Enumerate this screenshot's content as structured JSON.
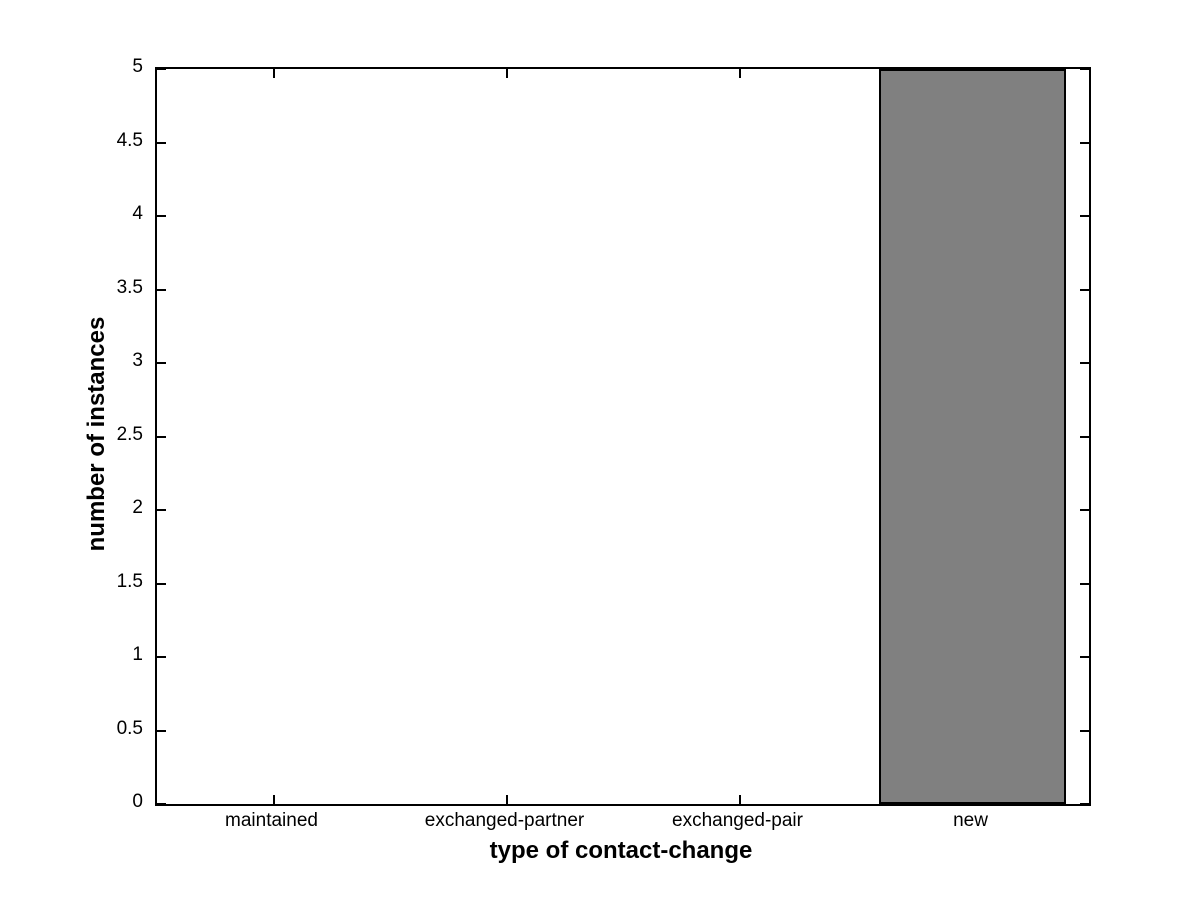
{
  "chart_data": {
    "type": "bar",
    "title": "",
    "xlabel": "type of contact-change",
    "ylabel": "number of instances",
    "categories": [
      "maintained",
      "exchanged-partner",
      "exchanged-pair",
      "new"
    ],
    "values": [
      0,
      0,
      0,
      5
    ],
    "ylim": [
      0,
      5
    ],
    "yticks": [
      0,
      0.5,
      1,
      1.5,
      2,
      2.5,
      3,
      3.5,
      4,
      4.5,
      5
    ],
    "bar_width_fraction": 0.8,
    "grid": false,
    "box": true,
    "legend_position": "none",
    "colors": {
      "bar_fill": "#808080",
      "bar_edge": "#000000",
      "axis": "#000000",
      "background": "#ffffff",
      "text": "#000000"
    }
  }
}
